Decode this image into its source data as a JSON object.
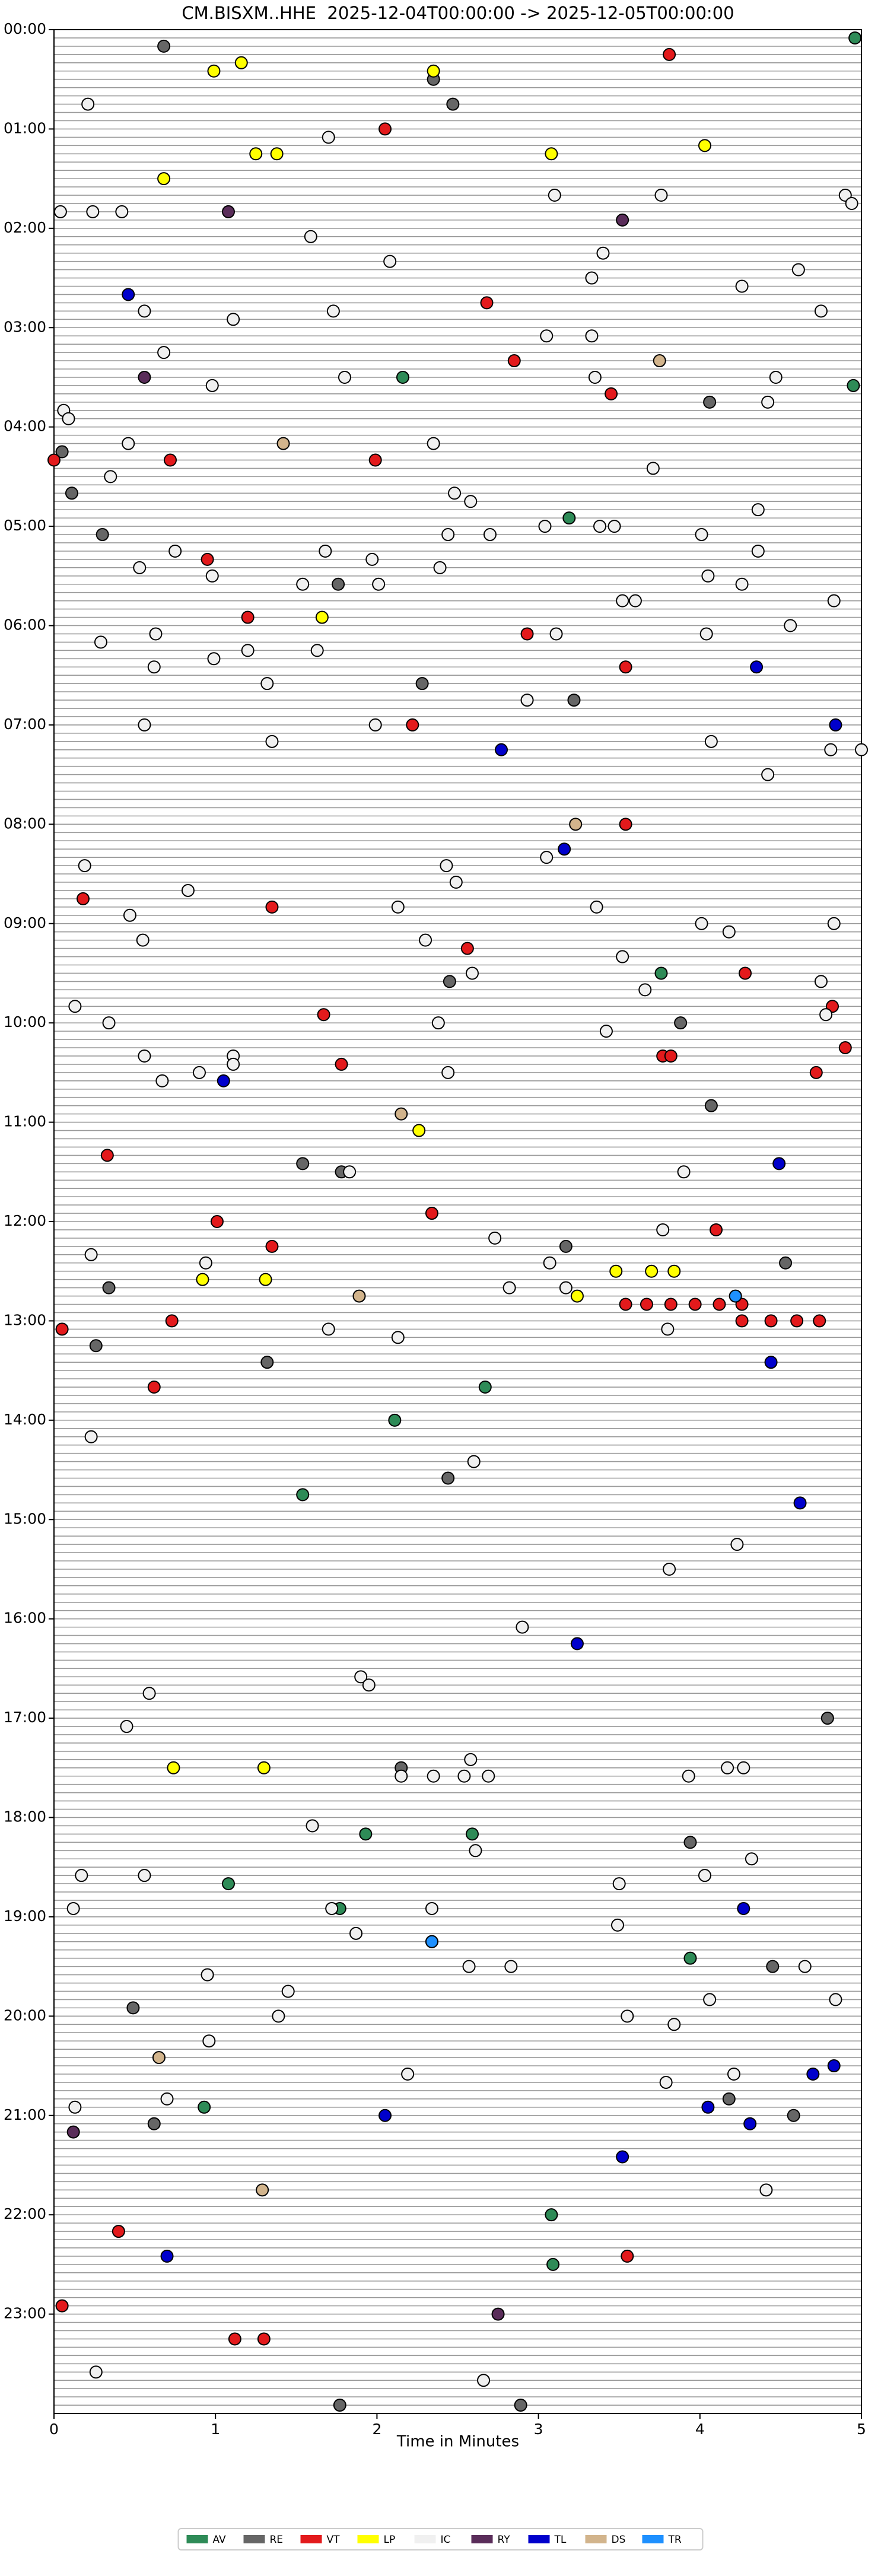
{
  "chart_data": {
    "type": "scatter",
    "title": "CM.BISXM..HHE  2025-12-04T00:00:00 -> 2025-12-05T00:00:00",
    "x_label": "Time in Minutes",
    "xlim": [
      0,
      5
    ],
    "xticks": [
      0,
      1,
      2,
      3,
      4,
      5
    ],
    "ylim": [
      0,
      1440
    ],
    "y_inverted": true,
    "row_step": 5,
    "yticks": [
      {
        "value": 0,
        "label": "00:00"
      },
      {
        "value": 60,
        "label": "01:00"
      },
      {
        "value": 120,
        "label": "02:00"
      },
      {
        "value": 180,
        "label": "03:00"
      },
      {
        "value": 240,
        "label": "04:00"
      },
      {
        "value": 300,
        "label": "05:00"
      },
      {
        "value": 360,
        "label": "06:00"
      },
      {
        "value": 420,
        "label": "07:00"
      },
      {
        "value": 480,
        "label": "08:00"
      },
      {
        "value": 540,
        "label": "09:00"
      },
      {
        "value": 600,
        "label": "10:00"
      },
      {
        "value": 660,
        "label": "11:00"
      },
      {
        "value": 720,
        "label": "12:00"
      },
      {
        "value": 780,
        "label": "13:00"
      },
      {
        "value": 840,
        "label": "14:00"
      },
      {
        "value": 900,
        "label": "15:00"
      },
      {
        "value": 960,
        "label": "16:00"
      },
      {
        "value": 1020,
        "label": "17:00"
      },
      {
        "value": 1080,
        "label": "18:00"
      },
      {
        "value": 1140,
        "label": "19:00"
      },
      {
        "value": 1200,
        "label": "20:00"
      },
      {
        "value": 1260,
        "label": "21:00"
      },
      {
        "value": 1320,
        "label": "22:00"
      },
      {
        "value": 1380,
        "label": "23:00"
      }
    ],
    "legend": "lower center",
    "series": [
      {
        "name": "AV",
        "color": "#2e8b57",
        "x": [
          4.96,
          2.16,
          4.95,
          3.19,
          3.76,
          2.67,
          2.11,
          1.54,
          1.93,
          2.59,
          1.08,
          1.77,
          3.94,
          0.93,
          3.08,
          3.09
        ],
        "y": [
          5,
          210,
          215,
          295,
          570,
          820,
          840,
          885,
          1090,
          1090,
          1120,
          1135,
          1165,
          1255,
          1320,
          1350
        ]
      },
      {
        "name": "RE",
        "color": "#666666",
        "x": [
          0.68,
          2.35,
          2.47,
          4.06,
          0.05,
          0.11,
          0.3,
          1.76,
          2.28,
          3.22,
          2.45,
          3.88,
          4.07,
          1.54,
          1.78,
          3.17,
          4.53,
          0.34,
          0.26,
          1.32,
          2.44,
          4.79,
          2.15,
          3.94,
          4.45,
          0.49,
          4.18,
          4.58,
          0.62,
          1.77,
          2.89
        ],
        "y": [
          10,
          30,
          45,
          225,
          255,
          280,
          305,
          335,
          395,
          405,
          575,
          600,
          650,
          685,
          690,
          735,
          745,
          760,
          795,
          805,
          875,
          1020,
          1050,
          1095,
          1170,
          1195,
          1250,
          1260,
          1265,
          1435,
          1435
        ]
      },
      {
        "name": "VT",
        "color": "#e31a1c",
        "x": [
          3.81,
          2.05,
          2.68,
          2.85,
          3.45,
          0.0,
          0.72,
          1.99,
          0.95,
          1.2,
          2.93,
          3.54,
          2.22,
          3.54,
          0.18,
          1.35,
          2.56,
          4.28,
          1.67,
          4.82,
          4.9,
          1.78,
          3.77,
          3.82,
          4.72,
          0.33,
          2.34,
          1.01,
          4.1,
          1.35,
          3.54,
          3.67,
          3.82,
          3.97,
          4.12,
          4.26,
          4.26,
          4.44,
          4.6,
          4.74,
          0.05,
          0.73,
          0.62,
          0.4,
          3.55,
          0.05,
          1.12,
          1.3
        ],
        "y": [
          15,
          60,
          165,
          200,
          220,
          260,
          260,
          260,
          320,
          355,
          365,
          385,
          420,
          480,
          525,
          530,
          555,
          570,
          595,
          590,
          615,
          625,
          620,
          620,
          630,
          680,
          715,
          720,
          725,
          735,
          770,
          770,
          770,
          770,
          770,
          770,
          780,
          780,
          780,
          780,
          785,
          780,
          820,
          1330,
          1345,
          1375,
          1395,
          1395
        ]
      },
      {
        "name": "LP",
        "color": "#ffff00",
        "x": [
          1.16,
          0.99,
          2.35,
          1.25,
          1.38,
          3.08,
          4.03,
          0.68,
          1.66,
          2.26,
          3.48,
          3.7,
          3.84,
          0.92,
          1.31,
          3.24,
          0.74,
          1.3
        ],
        "y": [
          20,
          25,
          25,
          75,
          75,
          75,
          70,
          90,
          355,
          665,
          750,
          750,
          750,
          755,
          755,
          765,
          1050,
          1050
        ]
      },
      {
        "name": "IC",
        "color": "#f0f0f0",
        "x": [
          0.21,
          1.7,
          3.1,
          3.76,
          4.9,
          4.94,
          0.04,
          0.24,
          0.42,
          1.59,
          2.08,
          3.4,
          3.33,
          4.61,
          4.26,
          0.56,
          1.73,
          4.75,
          1.11,
          3.05,
          3.33,
          0.68,
          1.8,
          3.35,
          4.47,
          0.98,
          4.42,
          0.06,
          0.09,
          0.46,
          2.35,
          3.71,
          0.35,
          2.48,
          2.58,
          4.36,
          2.44,
          2.7,
          3.04,
          3.38,
          3.47,
          4.01,
          0.75,
          1.68,
          4.36,
          1.97,
          0.53,
          0.98,
          2.39,
          1.54,
          2.01,
          4.05,
          4.26,
          3.52,
          3.6,
          4.83,
          4.56,
          0.63,
          3.11,
          4.04,
          0.29,
          1.2,
          1.63,
          0.99,
          0.62,
          1.32,
          2.93,
          0.56,
          1.99,
          1.35,
          4.07,
          4.81,
          5.0,
          4.42,
          3.05,
          0.19,
          2.43,
          2.49,
          0.83,
          2.13,
          3.36,
          0.47,
          4.01,
          4.83,
          4.18,
          0.55,
          2.3,
          3.52,
          2.59,
          4.75,
          3.66,
          0.13,
          4.78,
          0.34,
          2.38,
          3.42,
          0.56,
          1.11,
          1.11,
          0.9,
          2.44,
          0.67,
          1.83,
          3.9,
          3.77,
          2.73,
          0.23,
          0.94,
          3.07,
          2.82,
          3.17,
          1.7,
          3.8,
          2.13,
          0.23,
          2.6,
          4.23,
          3.81,
          2.9,
          0.59,
          1.9,
          1.95,
          0.45,
          2.58,
          2.15,
          2.35,
          2.54,
          2.69,
          3.93,
          4.17,
          4.27,
          1.6,
          2.61,
          4.32,
          0.17,
          0.56,
          4.03,
          3.5,
          0.12,
          1.72,
          2.34,
          3.49,
          1.87,
          2.57,
          2.83,
          4.65,
          0.95,
          1.45,
          1.39,
          3.55,
          4.06,
          4.84,
          3.84,
          0.96,
          2.19,
          4.21,
          3.79,
          0.7,
          0.13,
          4.41,
          0.26,
          2.66
        ],
        "y": [
          45,
          65,
          100,
          100,
          100,
          105,
          110,
          110,
          110,
          125,
          140,
          135,
          150,
          145,
          155,
          170,
          170,
          170,
          175,
          185,
          185,
          195,
          210,
          210,
          210,
          215,
          225,
          230,
          235,
          250,
          250,
          265,
          270,
          280,
          285,
          290,
          305,
          305,
          300,
          300,
          300,
          305,
          315,
          315,
          315,
          320,
          325,
          330,
          325,
          335,
          335,
          330,
          335,
          345,
          345,
          345,
          360,
          365,
          365,
          365,
          370,
          375,
          375,
          380,
          385,
          395,
          405,
          420,
          420,
          430,
          430,
          435,
          435,
          450,
          500,
          505,
          505,
          515,
          520,
          530,
          530,
          535,
          540,
          540,
          545,
          550,
          550,
          560,
          570,
          575,
          580,
          590,
          595,
          600,
          600,
          605,
          620,
          620,
          625,
          630,
          630,
          635,
          690,
          690,
          725,
          730,
          740,
          745,
          745,
          760,
          760,
          785,
          785,
          790,
          850,
          865,
          915,
          930,
          965,
          1005,
          995,
          1000,
          1025,
          1045,
          1055,
          1055,
          1055,
          1055,
          1055,
          1050,
          1050,
          1085,
          1100,
          1105,
          1115,
          1115,
          1115,
          1120,
          1135,
          1135,
          1135,
          1145,
          1150,
          1170,
          1170,
          1170,
          1175,
          1185,
          1200,
          1200,
          1190,
          1190,
          1205,
          1215,
          1235,
          1235,
          1240,
          1250,
          1255,
          1305,
          1415,
          1420
        ]
      },
      {
        "name": "RY",
        "color": "#5a2d5a",
        "x": [
          1.08,
          3.52,
          0.56,
          0.12,
          2.75
        ],
        "y": [
          110,
          115,
          210,
          1270,
          1380
        ]
      },
      {
        "name": "TL",
        "color": "#0000cc",
        "x": [
          0.46,
          4.35,
          4.84,
          2.77,
          3.16,
          1.05,
          4.49,
          4.44,
          4.62,
          3.24,
          4.27,
          2.34,
          4.83,
          4.7,
          2.05,
          4.05,
          4.31,
          3.52,
          0.7
        ],
        "y": [
          160,
          385,
          420,
          435,
          495,
          635,
          685,
          805,
          890,
          975,
          1135,
          1155,
          1230,
          1235,
          1260,
          1255,
          1265,
          1285,
          1345
        ]
      },
      {
        "name": "DS",
        "color": "#d2b48c",
        "x": [
          3.75,
          1.42,
          3.23,
          2.15,
          1.89,
          0.65,
          1.29
        ],
        "y": [
          200,
          250,
          480,
          655,
          765,
          1225,
          1305
        ]
      },
      {
        "name": "TR",
        "color": "#1e90ff",
        "x": [
          4.22,
          2.34
        ],
        "y": [
          765,
          1155
        ]
      }
    ]
  }
}
